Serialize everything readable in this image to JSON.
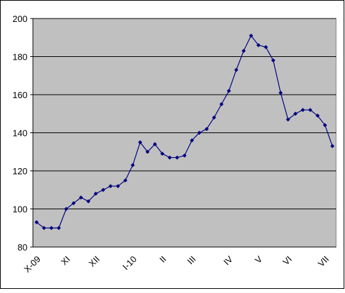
{
  "chart_data": {
    "type": "line",
    "categories": [
      "X-09",
      null,
      null,
      null,
      "XI",
      null,
      null,
      null,
      "XII",
      null,
      null,
      null,
      null,
      "I-10",
      null,
      null,
      null,
      "II",
      null,
      null,
      null,
      "III",
      null,
      null,
      null,
      null,
      "IV",
      null,
      null,
      null,
      "V",
      null,
      null,
      null,
      "VI",
      null,
      null,
      null,
      null,
      "VII",
      null
    ],
    "series": [
      {
        "color": "#000080",
        "values": [
          93,
          90,
          90,
          90,
          100,
          103,
          106,
          104,
          108,
          110,
          112,
          112,
          115,
          123,
          135,
          130,
          134,
          129,
          127,
          127,
          128,
          136,
          140,
          142,
          148,
          155,
          162,
          173,
          183,
          191,
          186,
          185,
          178,
          161,
          147,
          150,
          152,
          152,
          149,
          144,
          133
        ]
      }
    ],
    "ylim": [
      80,
      200
    ],
    "yticks": [
      80,
      100,
      120,
      140,
      160,
      180,
      200
    ],
    "grid": true
  }
}
